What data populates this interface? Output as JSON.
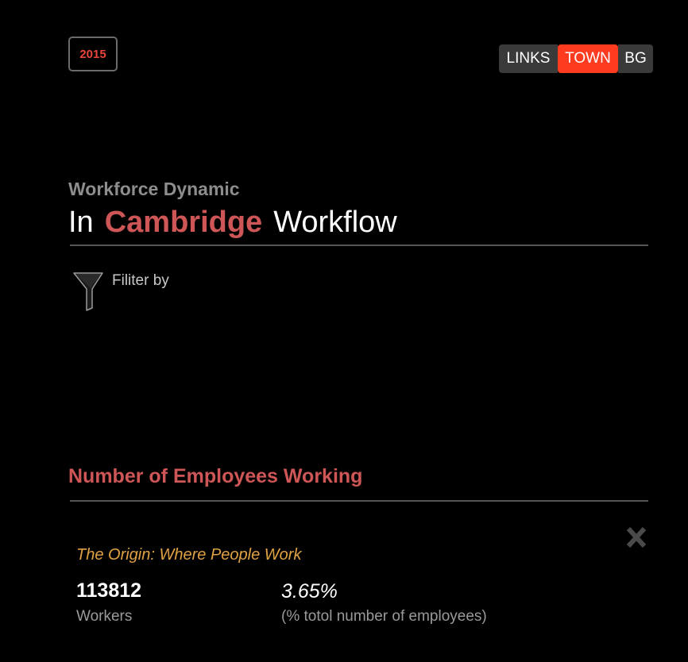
{
  "header": {
    "year": "2015",
    "toggles": [
      {
        "label": "LINKS",
        "active": false
      },
      {
        "label": "TOWN",
        "active": true
      },
      {
        "label": "BG",
        "active": false
      }
    ],
    "accent_color": "#ff3b1f"
  },
  "title": {
    "subtitle": "Workforce Dynamic",
    "prefix": "In",
    "city": "Cambridge",
    "suffix": "Workflow",
    "city_color": "#cf5656"
  },
  "filter": {
    "label": "Filiter by",
    "icon": "funnel-icon"
  },
  "section": {
    "title": "Number of Employees Working",
    "close_icon": "close-x-icon",
    "origin_label": "The Origin: Where People Work",
    "workers_value": "113812",
    "workers_label": "Workers",
    "percent_value": "3.65%",
    "percent_label": "(% totol number of employees)",
    "origin_color": "#e0a243"
  }
}
